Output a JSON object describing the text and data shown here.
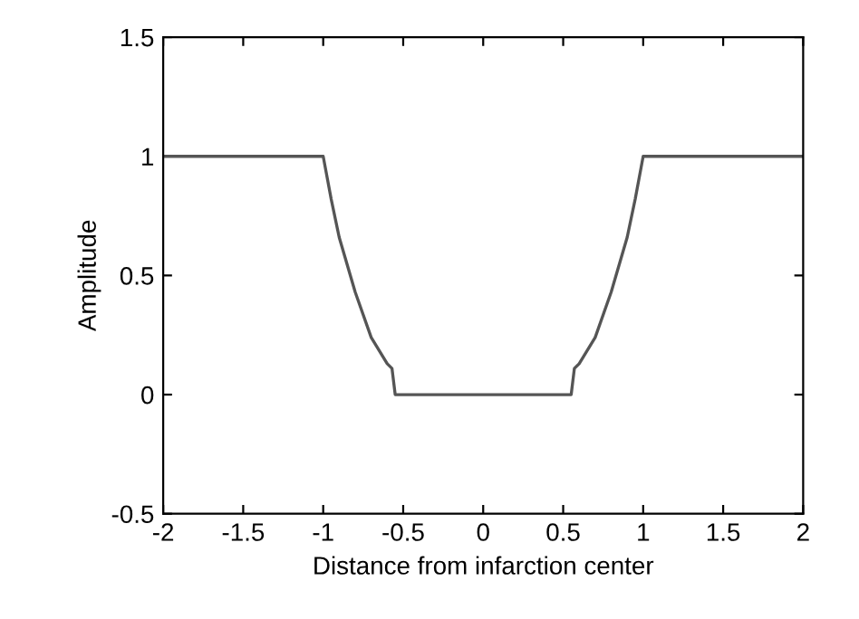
{
  "chart_data": {
    "type": "line",
    "xlabel": "Distance from infarction center",
    "ylabel": "Amplitude",
    "x": [
      -2,
      -1,
      -0.95,
      -0.9,
      -0.8,
      -0.7,
      -0.6,
      -0.57,
      -0.55,
      0.55,
      0.57,
      0.6,
      0.7,
      0.8,
      0.9,
      0.95,
      1,
      2
    ],
    "series": [
      {
        "color": "#555555",
        "values": [
          1,
          1,
          0.82,
          0.66,
          0.43,
          0.24,
          0.13,
          0.11,
          0,
          0,
          0.11,
          0.13,
          0.24,
          0.43,
          0.66,
          0.82,
          1,
          1
        ]
      }
    ],
    "xlim": [
      -2,
      2
    ],
    "ylim": [
      -0.5,
      1.5
    ],
    "xticks": [
      -2,
      -1.5,
      -1,
      -0.5,
      0,
      0.5,
      1,
      1.5,
      2
    ],
    "yticks": [
      -0.5,
      0,
      0.5,
      1,
      1.5
    ],
    "grid": false,
    "legend": false,
    "marker": "none",
    "line_style": "solid"
  }
}
